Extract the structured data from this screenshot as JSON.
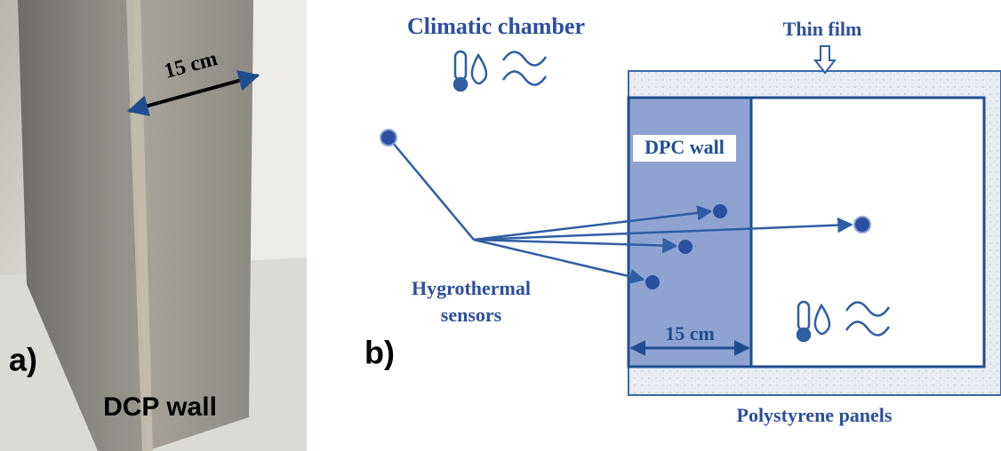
{
  "panel_a": {
    "label": "a)",
    "dimension": "15 cm",
    "caption": "DCP wall"
  },
  "panel_b": {
    "label": "b)",
    "chamber": "Climatic chamber",
    "film": "Thin film",
    "wall": "DPC wall",
    "sensors": [
      "Hygrothermal",
      "sensors"
    ],
    "dimension": "15 cm",
    "panels": "Polystyrene panels"
  }
}
